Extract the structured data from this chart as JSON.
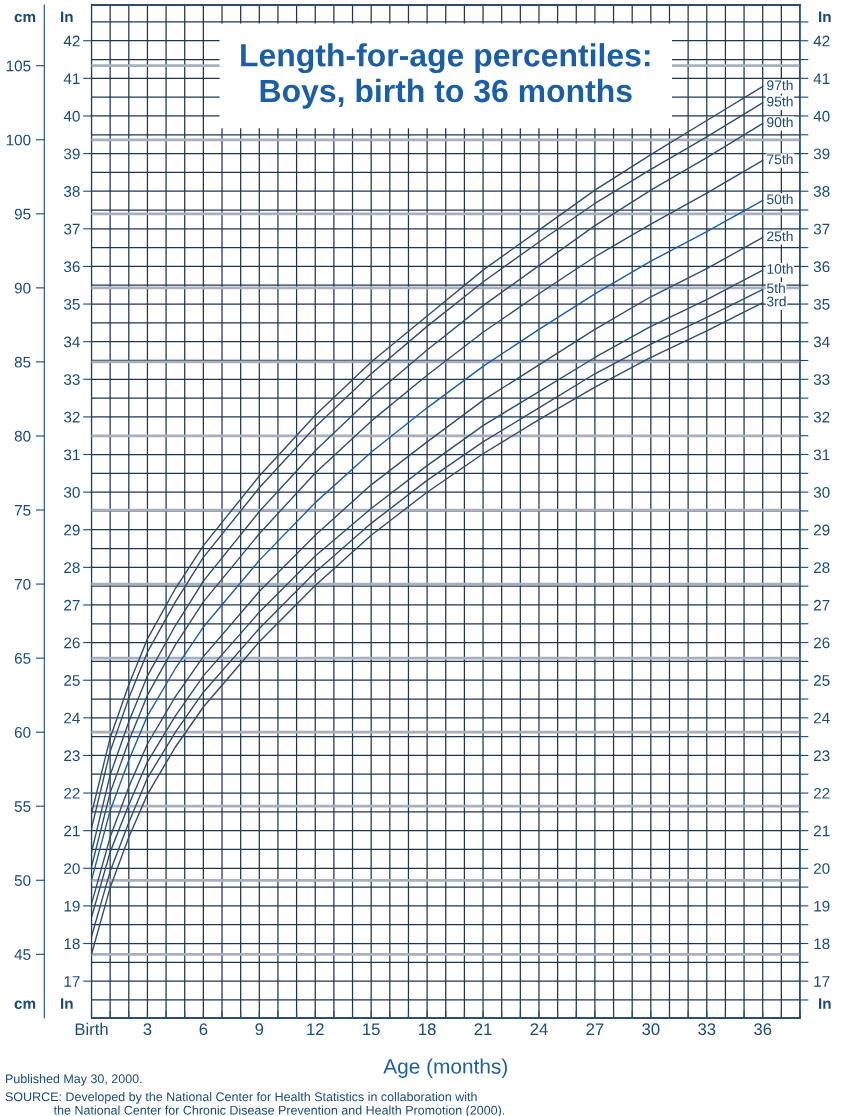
{
  "chart_data": {
    "type": "line",
    "title": "Length-for-age percentiles:\nBoys, birth to 36 months",
    "xlabel": "Age (months)",
    "ylabel": "cm",
    "y2label": "In",
    "y3label": "In",
    "x": [
      0,
      1,
      2,
      3,
      4.5,
      6,
      9,
      12,
      15,
      18,
      21,
      24,
      27,
      30,
      33,
      36
    ],
    "series": [
      {
        "name": "97th",
        "color": "#2e4d6e",
        "values": [
          54.5,
          59.6,
          63.2,
          66.3,
          69.7,
          72.6,
          77.3,
          81.4,
          85.0,
          88.1,
          91.2,
          93.9,
          96.6,
          99.0,
          101.3,
          103.6
        ]
      },
      {
        "name": "95th",
        "color": "#2e4d6e",
        "values": [
          53.5,
          58.7,
          62.3,
          65.4,
          68.8,
          71.8,
          76.5,
          80.6,
          84.2,
          87.4,
          90.4,
          93.1,
          95.7,
          98.0,
          100.2,
          102.5
        ]
      },
      {
        "name": "90th",
        "color": "#2e4d6e",
        "values": [
          51.9,
          57.1,
          60.7,
          63.8,
          67.2,
          70.2,
          74.9,
          79.0,
          82.6,
          85.8,
          88.8,
          91.5,
          94.2,
          96.6,
          98.8,
          101.1
        ]
      },
      {
        "name": "75th",
        "color": "#2e4d6e",
        "values": [
          50.9,
          55.9,
          59.4,
          62.5,
          65.9,
          68.8,
          73.4,
          77.5,
          81.0,
          84.1,
          87.0,
          89.6,
          92.1,
          94.3,
          96.4,
          98.6
        ]
      },
      {
        "name": "50th",
        "color": "#1a5ea8",
        "values": [
          50.0,
          54.7,
          58.1,
          61.1,
          64.3,
          67.1,
          71.6,
          75.5,
          78.9,
          81.9,
          84.7,
          87.2,
          89.6,
          91.8,
          93.8,
          95.9
        ]
      },
      {
        "name": "25th",
        "color": "#2e4d6e",
        "values": [
          48.4,
          52.9,
          56.3,
          59.2,
          62.4,
          65.1,
          69.5,
          73.3,
          76.7,
          79.6,
          82.4,
          84.8,
          87.2,
          89.4,
          91.3,
          93.4
        ]
      },
      {
        "name": "10th",
        "color": "#2e4d6e",
        "values": [
          47.5,
          51.9,
          55.1,
          58.0,
          61.1,
          63.8,
          68.1,
          71.9,
          75.1,
          78.0,
          80.7,
          83.0,
          85.3,
          87.4,
          89.2,
          91.2
        ]
      },
      {
        "name": "5th",
        "color": "#2e4d6e",
        "values": [
          46.2,
          50.6,
          53.9,
          56.9,
          60.0,
          62.7,
          67.0,
          70.8,
          74.1,
          77.0,
          79.6,
          81.9,
          84.2,
          86.2,
          88.0,
          89.9
        ]
      },
      {
        "name": "3rd",
        "color": "#2e4d6e",
        "values": [
          45.0,
          49.5,
          52.9,
          55.8,
          59.0,
          61.7,
          66.1,
          69.9,
          73.3,
          76.2,
          78.8,
          81.1,
          83.3,
          85.3,
          87.1,
          89.0
        ]
      }
    ],
    "xlim": [
      0,
      38
    ],
    "xticks": [
      {
        "value": 0,
        "label": "Birth"
      },
      {
        "value": 1,
        "label": null
      },
      {
        "value": 2,
        "label": null
      },
      3,
      {
        "value": 4,
        "label": null
      },
      {
        "value": 5,
        "label": null
      },
      6,
      {
        "value": 7,
        "label": null
      },
      {
        "value": 8,
        "label": null
      },
      9,
      {
        "value": 10,
        "label": null
      },
      {
        "value": 11,
        "label": null
      },
      12,
      {
        "value": 13,
        "label": null
      },
      {
        "value": 14,
        "label": null
      },
      15,
      {
        "value": 16,
        "label": null
      },
      {
        "value": 17,
        "label": null
      },
      18,
      {
        "value": 19,
        "label": null
      },
      {
        "value": 20,
        "label": null
      },
      21,
      {
        "value": 22,
        "label": null
      },
      {
        "value": 23,
        "label": null
      },
      24,
      {
        "value": 25,
        "label": null
      },
      {
        "value": 26,
        "label": null
      },
      27,
      {
        "value": 28,
        "label": null
      },
      {
        "value": 29,
        "label": null
      },
      30,
      {
        "value": 31,
        "label": null
      },
      {
        "value": 32,
        "label": null
      },
      33,
      {
        "value": 34,
        "label": null
      },
      {
        "value": 35,
        "label": null
      },
      36,
      {
        "value": 37,
        "label": null
      },
      {
        "value": 38,
        "label": null
      }
    ],
    "ylim": [
      40.7,
      109.1
    ],
    "yticks": [
      45,
      50,
      55,
      60,
      65,
      70,
      75,
      80,
      85,
      90,
      95,
      100,
      105
    ],
    "y2lim": [
      16.02,
      42.95
    ],
    "y2ticks": [
      {
        "value": 16.5,
        "label": null
      },
      17,
      {
        "value": 17.5,
        "label": null
      },
      18,
      {
        "value": 18.5,
        "label": null
      },
      19,
      {
        "value": 19.5,
        "label": null
      },
      20,
      {
        "value": 20.5,
        "label": null
      },
      21,
      {
        "value": 21.5,
        "label": null
      },
      22,
      {
        "value": 22.5,
        "label": null
      },
      23,
      {
        "value": 23.5,
        "label": null
      },
      24,
      {
        "value": 24.5,
        "label": null
      },
      25,
      {
        "value": 25.5,
        "label": null
      },
      26,
      {
        "value": 26.5,
        "label": null
      },
      27,
      {
        "value": 27.5,
        "label": null
      },
      28,
      {
        "value": 28.5,
        "label": null
      },
      29,
      {
        "value": 29.5,
        "label": null
      },
      30,
      {
        "value": 30.5,
        "label": null
      },
      31,
      {
        "value": 31.5,
        "label": null
      },
      32,
      {
        "value": 32.5,
        "label": null
      },
      33,
      {
        "value": 33.5,
        "label": null
      },
      34,
      {
        "value": 34.5,
        "label": null
      },
      35,
      {
        "value": 35.5,
        "label": null
      },
      36,
      {
        "value": 36.5,
        "label": null
      },
      37,
      {
        "value": 37.5,
        "label": null
      },
      38,
      {
        "value": 38.5,
        "label": null
      },
      39,
      {
        "value": 39.5,
        "label": null
      },
      40,
      {
        "value": 40.5,
        "label": null
      },
      41,
      {
        "value": 41.5,
        "label": null
      },
      42,
      {
        "value": 42.5,
        "label": null
      }
    ],
    "y3lim": [
      16.02,
      42.95
    ],
    "y3ticks": [
      17,
      18,
      19,
      20,
      21,
      22,
      23,
      24,
      25,
      26,
      27,
      28,
      29,
      30,
      31,
      32,
      33,
      34,
      35,
      36,
      37,
      38,
      39,
      40,
      41,
      42
    ],
    "grid": true,
    "legend": false,
    "marker": "none",
    "line_style": "solid",
    "annotations": [
      "Published May 30, 2000.",
      "SOURCE: Developed by the National Center for Health Statistics in collaboration with\n              the National Center for Chronic Disease Prevention and Health Promotion (2000)."
    ]
  }
}
